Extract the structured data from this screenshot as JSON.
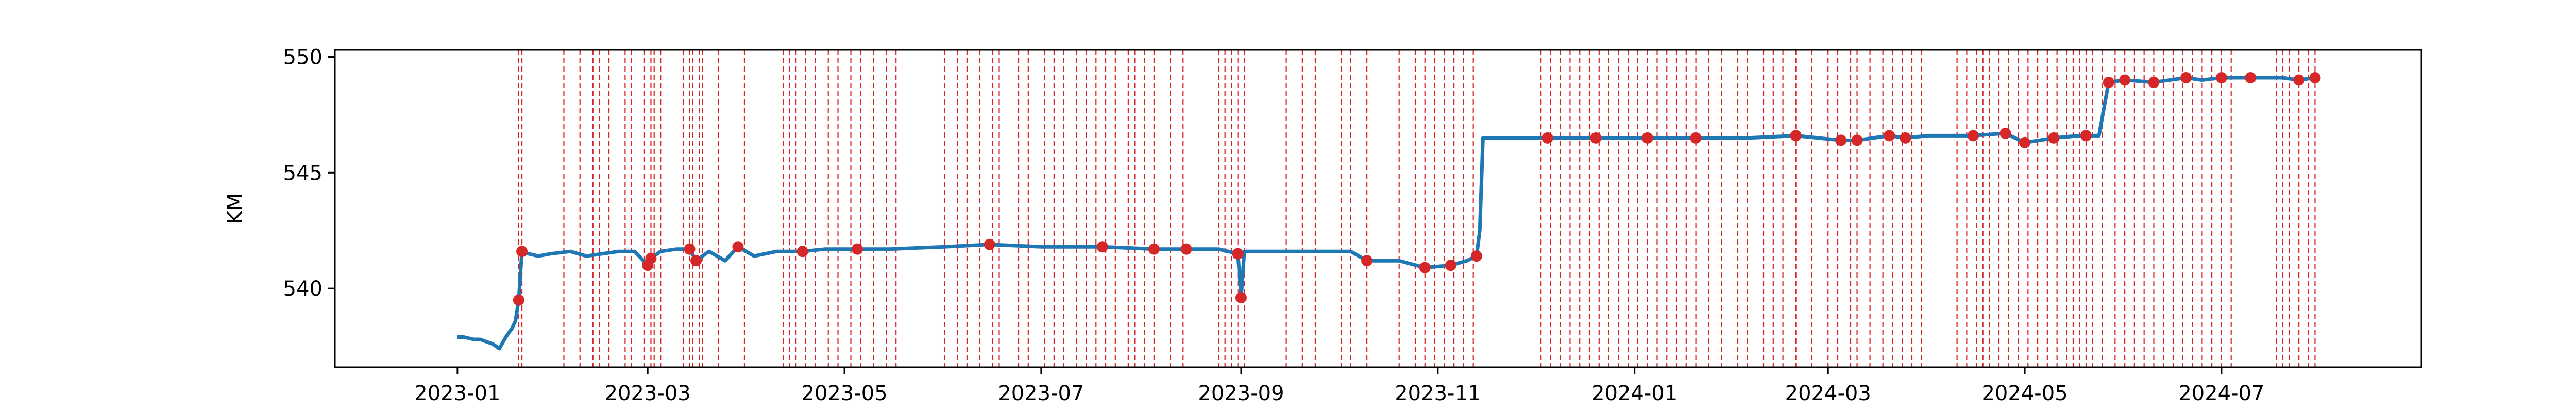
{
  "chart_data": {
    "type": "line",
    "title": "",
    "xlabel": "",
    "ylabel": "KM",
    "x_range": [
      "2022-11-24",
      "2024-09-01"
    ],
    "y_range": [
      536.6,
      550.3
    ],
    "grid": false,
    "legend": "none",
    "x_ticks": [
      "2023-01",
      "2023-03",
      "2023-05",
      "2023-07",
      "2023-09",
      "2023-11",
      "2024-01",
      "2024-03",
      "2024-05",
      "2024-07"
    ],
    "y_ticks": [
      "540",
      "545",
      "550"
    ],
    "series": [
      {
        "color": "#1f77b4",
        "x": [
          "2023-01-01",
          "2023-01-03",
          "2023-01-06",
          "2023-01-08",
          "2023-01-10",
          "2023-01-12",
          "2023-01-14",
          "2023-01-16",
          "2023-01-18",
          "2023-01-19",
          "2023-01-20",
          "2023-01-21",
          "2023-01-23",
          "2023-01-26",
          "2023-01-30",
          "2023-02-05",
          "2023-02-10",
          "2023-02-15",
          "2023-02-20",
          "2023-02-25",
          "2023-03-01",
          "2023-03-02",
          "2023-03-05",
          "2023-03-10",
          "2023-03-14",
          "2023-03-16",
          "2023-03-20",
          "2023-03-25",
          "2023-03-29",
          "2023-04-03",
          "2023-04-10",
          "2023-04-18",
          "2023-04-25",
          "2023-05-05",
          "2023-05-15",
          "2023-06-01",
          "2023-06-15",
          "2023-07-01",
          "2023-07-20",
          "2023-08-05",
          "2023-08-15",
          "2023-08-25",
          "2023-08-31",
          "2023-09-01",
          "2023-09-02",
          "2023-09-10",
          "2023-09-25",
          "2023-10-05",
          "2023-10-10",
          "2023-10-20",
          "2023-10-28",
          "2023-11-05",
          "2023-11-10",
          "2023-11-13",
          "2023-11-14",
          "2023-11-15",
          "2023-11-20",
          "2023-12-05",
          "2023-12-20",
          "2024-01-05",
          "2024-01-20",
          "2024-02-05",
          "2024-02-20",
          "2024-03-05",
          "2024-03-10",
          "2024-03-20",
          "2024-03-25",
          "2024-04-01",
          "2024-04-15",
          "2024-04-25",
          "2024-05-01",
          "2024-05-10",
          "2024-05-18",
          "2024-05-20",
          "2024-05-24",
          "2024-05-27",
          "2024-06-01",
          "2024-06-10",
          "2024-06-20",
          "2024-06-25",
          "2024-07-01",
          "2024-07-10",
          "2024-07-20",
          "2024-07-25",
          "2024-07-30"
        ],
        "y": [
          537.9,
          537.9,
          537.8,
          537.8,
          537.7,
          537.6,
          537.4,
          537.9,
          538.3,
          538.6,
          539.5,
          541.6,
          541.5,
          541.4,
          541.5,
          541.6,
          541.4,
          541.5,
          541.6,
          541.6,
          541.0,
          541.3,
          541.6,
          541.7,
          541.7,
          541.2,
          541.6,
          541.2,
          541.8,
          541.4,
          541.6,
          541.6,
          541.7,
          541.7,
          541.7,
          541.8,
          541.9,
          541.8,
          541.8,
          541.7,
          541.7,
          541.7,
          541.5,
          539.6,
          541.6,
          541.6,
          541.6,
          541.6,
          541.2,
          541.2,
          540.9,
          541.0,
          541.2,
          541.4,
          542.5,
          546.5,
          546.5,
          546.5,
          546.5,
          546.5,
          546.5,
          546.5,
          546.6,
          546.4,
          546.4,
          546.6,
          546.5,
          546.6,
          546.6,
          546.7,
          546.3,
          546.5,
          546.6,
          546.6,
          546.6,
          548.9,
          549.0,
          548.9,
          549.1,
          549.0,
          549.1,
          549.1,
          549.1,
          549.0,
          549.1
        ]
      }
    ],
    "markers": {
      "color": "#d62728",
      "x": [
        "2023-01-20",
        "2023-01-21",
        "2023-03-01",
        "2023-03-02",
        "2023-03-14",
        "2023-03-16",
        "2023-03-29",
        "2023-04-18",
        "2023-05-05",
        "2023-06-15",
        "2023-07-20",
        "2023-08-05",
        "2023-08-15",
        "2023-08-31",
        "2023-09-01",
        "2023-10-10",
        "2023-10-28",
        "2023-11-05",
        "2023-11-13",
        "2023-12-05",
        "2023-12-20",
        "2024-01-05",
        "2024-01-20",
        "2024-02-20",
        "2024-03-05",
        "2024-03-10",
        "2024-03-20",
        "2024-03-25",
        "2024-04-15",
        "2024-04-25",
        "2024-05-01",
        "2024-05-10",
        "2024-05-20",
        "2024-05-27",
        "2024-06-01",
        "2024-06-10",
        "2024-06-20",
        "2024-07-01",
        "2024-07-10",
        "2024-07-25",
        "2024-07-30"
      ],
      "y": [
        539.5,
        541.6,
        541.0,
        541.3,
        541.7,
        541.2,
        541.8,
        541.6,
        541.7,
        541.9,
        541.8,
        541.7,
        541.7,
        541.5,
        539.6,
        541.2,
        540.9,
        541.0,
        541.4,
        546.5,
        546.5,
        546.5,
        546.5,
        546.6,
        546.4,
        546.4,
        546.6,
        546.5,
        546.6,
        546.7,
        546.3,
        546.5,
        546.6,
        548.9,
        549.0,
        548.9,
        549.1,
        549.1,
        549.1,
        549.0,
        549.1
      ]
    },
    "vlines": {
      "color": "#d62728",
      "x": [
        "2023-01-20",
        "2023-01-21",
        "2023-02-03",
        "2023-02-08",
        "2023-02-12",
        "2023-02-14",
        "2023-02-17",
        "2023-02-22",
        "2023-02-24",
        "2023-02-28",
        "2023-03-02",
        "2023-03-03",
        "2023-03-05",
        "2023-03-12",
        "2023-03-14",
        "2023-03-15",
        "2023-03-17",
        "2023-03-18",
        "2023-03-23",
        "2023-03-31",
        "2023-04-12",
        "2023-04-14",
        "2023-04-16",
        "2023-04-19",
        "2023-04-22",
        "2023-04-26",
        "2023-04-29",
        "2023-05-03",
        "2023-05-06",
        "2023-05-10",
        "2023-05-14",
        "2023-05-17",
        "2023-06-01",
        "2023-06-05",
        "2023-06-08",
        "2023-06-12",
        "2023-06-16",
        "2023-06-18",
        "2023-06-24",
        "2023-06-27",
        "2023-07-02",
        "2023-07-05",
        "2023-07-08",
        "2023-07-12",
        "2023-07-15",
        "2023-07-18",
        "2023-07-21",
        "2023-07-24",
        "2023-07-28",
        "2023-07-30",
        "2023-08-02",
        "2023-08-05",
        "2023-08-10",
        "2023-08-14",
        "2023-08-25",
        "2023-08-27",
        "2023-08-29",
        "2023-08-31",
        "2023-09-02",
        "2023-09-15",
        "2023-09-20",
        "2023-09-24",
        "2023-10-02",
        "2023-10-05",
        "2023-10-10",
        "2023-10-20",
        "2023-10-25",
        "2023-10-28",
        "2023-10-31",
        "2023-11-03",
        "2023-11-06",
        "2023-11-09",
        "2023-11-12",
        "2023-12-03",
        "2023-12-06",
        "2023-12-09",
        "2023-12-12",
        "2023-12-15",
        "2023-12-18",
        "2023-12-21",
        "2023-12-24",
        "2023-12-27",
        "2023-12-30",
        "2024-01-02",
        "2024-01-05",
        "2024-01-08",
        "2024-01-11",
        "2024-01-14",
        "2024-01-17",
        "2024-01-20",
        "2024-01-24",
        "2024-01-28",
        "2024-02-02",
        "2024-02-05",
        "2024-02-10",
        "2024-02-13",
        "2024-02-16",
        "2024-02-20",
        "2024-02-25",
        "2024-03-01",
        "2024-03-04",
        "2024-03-08",
        "2024-03-10",
        "2024-03-14",
        "2024-03-18",
        "2024-03-21",
        "2024-03-24",
        "2024-03-27",
        "2024-03-30",
        "2024-04-10",
        "2024-04-13",
        "2024-04-16",
        "2024-04-18",
        "2024-04-20",
        "2024-04-23",
        "2024-04-26",
        "2024-04-29",
        "2024-05-02",
        "2024-05-05",
        "2024-05-08",
        "2024-05-11",
        "2024-05-14",
        "2024-05-16",
        "2024-05-18",
        "2024-05-20",
        "2024-05-22",
        "2024-05-25",
        "2024-05-29",
        "2024-06-01",
        "2024-06-04",
        "2024-06-07",
        "2024-06-10",
        "2024-06-13",
        "2024-06-16",
        "2024-06-19",
        "2024-06-22",
        "2024-06-25",
        "2024-06-28",
        "2024-07-01",
        "2024-07-04",
        "2024-07-18",
        "2024-07-20",
        "2024-07-22",
        "2024-07-25",
        "2024-07-28",
        "2024-07-30"
      ]
    }
  }
}
